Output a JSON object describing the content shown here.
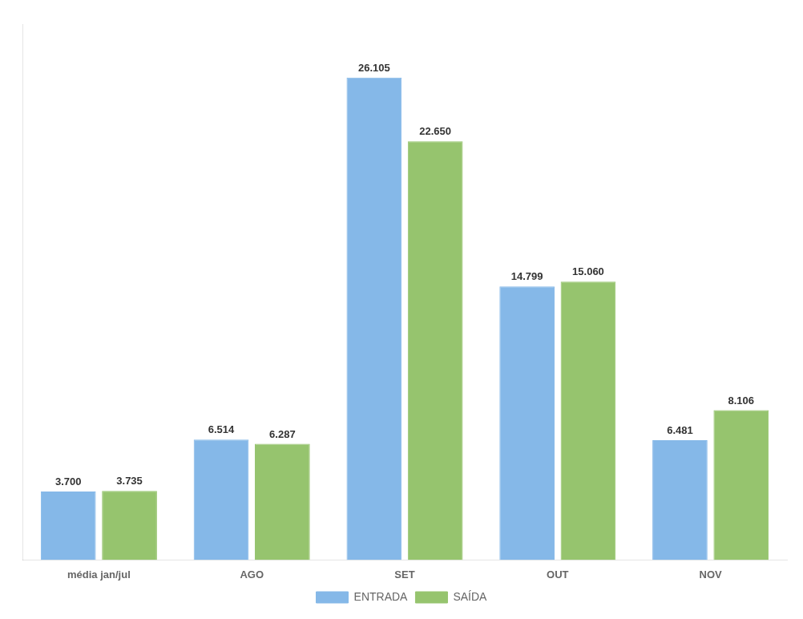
{
  "chart_data": {
    "type": "bar",
    "categories": [
      "média jan/jul",
      "AGO",
      "SET",
      "OUT",
      "NOV"
    ],
    "series": [
      {
        "name": "ENTRADA",
        "color": "#85B8E8",
        "values": [
          3700,
          6514,
          26105,
          14799,
          6481
        ],
        "value_labels": [
          "3.700",
          "6.514",
          "26.105",
          "14.799",
          "6.481"
        ]
      },
      {
        "name": "SAÍDA",
        "color": "#96C46E",
        "values": [
          3735,
          6287,
          22650,
          15060,
          8106
        ],
        "value_labels": [
          "3.735",
          "6.287",
          "22.650",
          "15.060",
          "8.106"
        ]
      }
    ],
    "ylim": [
      0,
      29000
    ],
    "grid": false,
    "legend": "bottom",
    "data_labels": true,
    "tick_labels": "x"
  }
}
